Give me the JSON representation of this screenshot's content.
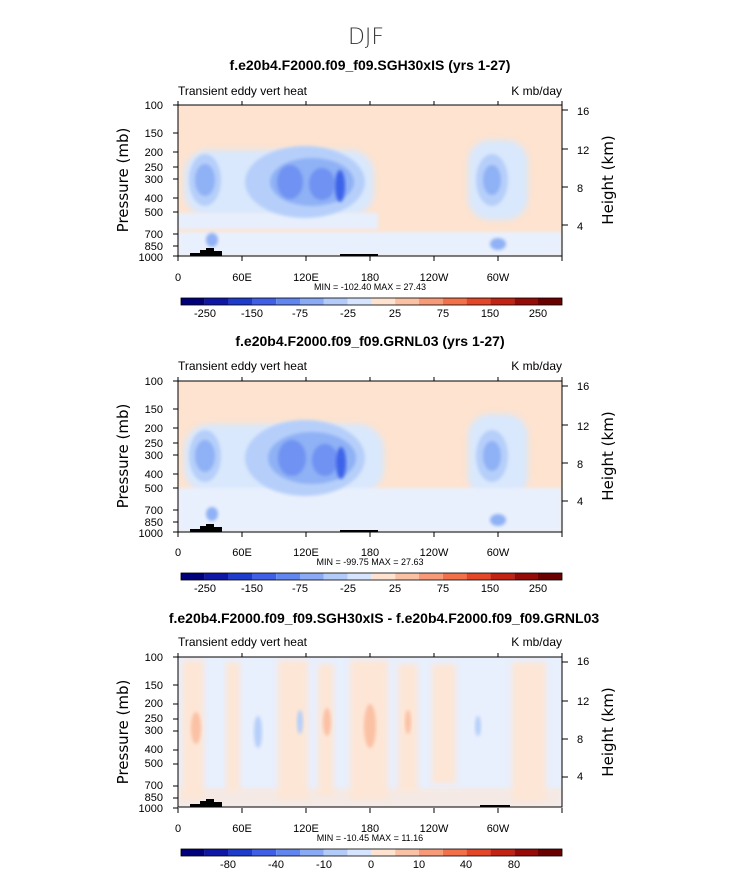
{
  "figure_title": "DJF",
  "chart_data": [
    {
      "type": "heatmap",
      "title": "f.e20b4.F2000.f09_f09.SGH30xIS (yrs 1-27)",
      "left_string": "Transient eddy vert heat",
      "right_string": "K mb/day",
      "xlabel": "",
      "ylabel": "Pressure (mb)",
      "ylabel_right": "Height (km)",
      "x_ticks": [
        "0",
        "60E",
        "120E",
        "180",
        "120W",
        "60W"
      ],
      "y_ticks": [
        "100",
        "150",
        "200",
        "250",
        "300",
        "400",
        "500",
        "700",
        "850",
        "1000"
      ],
      "height_ticks": [
        "16",
        "12",
        "8",
        "4"
      ],
      "min_max_text": "MIN = -102.40   MAX =  27.43",
      "colorbar_labels": [
        "-250",
        "-150",
        "-75",
        "-25",
        "25",
        "75",
        "150",
        "250"
      ]
    },
    {
      "type": "heatmap",
      "title": "f.e20b4.F2000.f09_f09.GRNL03 (yrs 1-27)",
      "left_string": "Transient eddy vert heat",
      "right_string": "K mb/day",
      "xlabel": "",
      "ylabel": "Pressure (mb)",
      "ylabel_right": "Height (km)",
      "x_ticks": [
        "0",
        "60E",
        "120E",
        "180",
        "120W",
        "60W"
      ],
      "y_ticks": [
        "100",
        "150",
        "200",
        "250",
        "300",
        "400",
        "500",
        "700",
        "850",
        "1000"
      ],
      "height_ticks": [
        "16",
        "12",
        "8",
        "4"
      ],
      "min_max_text": "MIN = -99.75   MAX =  27.63",
      "colorbar_labels": [
        "-250",
        "-150",
        "-75",
        "-25",
        "25",
        "75",
        "150",
        "250"
      ]
    },
    {
      "type": "heatmap",
      "title": "f.e20b4.F2000.f09_f09.SGH30xIS - f.e20b4.F2000.f09_f09.GRNL03",
      "left_string": "Transient eddy vert heat",
      "right_string": "K mb/day",
      "xlabel": "",
      "ylabel": "Pressure (mb)",
      "ylabel_right": "Height (km)",
      "x_ticks": [
        "0",
        "60E",
        "120E",
        "180",
        "120W",
        "60W"
      ],
      "y_ticks": [
        "100",
        "150",
        "200",
        "250",
        "300",
        "400",
        "500",
        "700",
        "850",
        "1000"
      ],
      "height_ticks": [
        "16",
        "12",
        "8",
        "4"
      ],
      "min_max_text": "MIN = -10.45   MAX =  11.16",
      "colorbar_labels": [
        "-80",
        "-40",
        "-10",
        "0",
        "10",
        "40",
        "80"
      ]
    }
  ],
  "colors": {
    "bg_pos": "#fde3d0",
    "neg1": "#d9e8fc",
    "neg2": "#b6cffa",
    "neg3": "#8fb1f5",
    "neg4": "#6f92f2",
    "neg5": "#3c63ea",
    "colorbar": [
      "#00007a",
      "#0e17a6",
      "#1e3ccc",
      "#3f5fe6",
      "#6186f0",
      "#8aaaf5",
      "#b3cbf9",
      "#d6e5fd",
      "#fde3d0",
      "#fbc1a4",
      "#f79a77",
      "#f2704a",
      "#e44628",
      "#c22312",
      "#960a08",
      "#6b0000"
    ]
  }
}
